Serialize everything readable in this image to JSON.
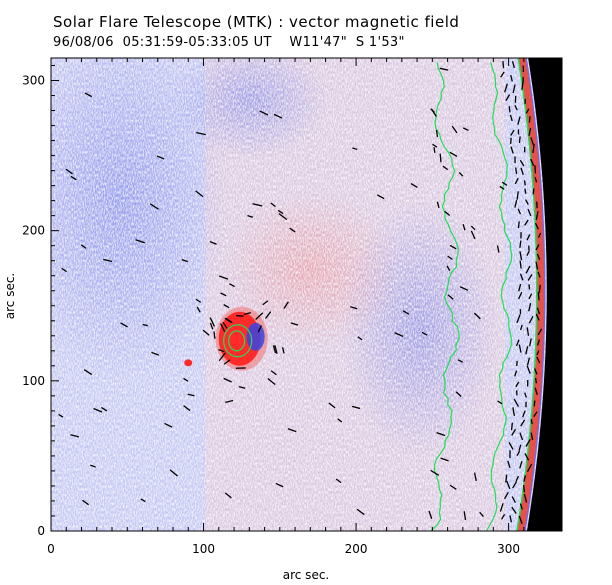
{
  "chart_data": {
    "type": "heatmap",
    "title": "Solar Flare Telescope (MTK) : vector magnetic field",
    "subtitle": "96/08/06  05:31:59-05:33:05 UT    W11'47\"  S 1'53\"",
    "xlabel": "arc sec.",
    "ylabel": "arc sec.",
    "xlim": [
      0,
      335
    ],
    "ylim": [
      0,
      315
    ],
    "xticks": [
      0,
      100,
      200,
      300
    ],
    "yticks": [
      0,
      100,
      200,
      300
    ],
    "colors": {
      "negative_polarity": "#7f86e8",
      "positive_polarity": "#f08a8a",
      "sunspot_core": "#ff2b2b",
      "off_disk": "#000000",
      "contour": "#22dd55",
      "vectors": "#000000"
    },
    "sunspot": {
      "x": 125,
      "y": 128,
      "rx": 14,
      "ry": 22
    },
    "small_spot": {
      "x": 90,
      "y": 112
    },
    "limb_x_at_center": 325
  }
}
